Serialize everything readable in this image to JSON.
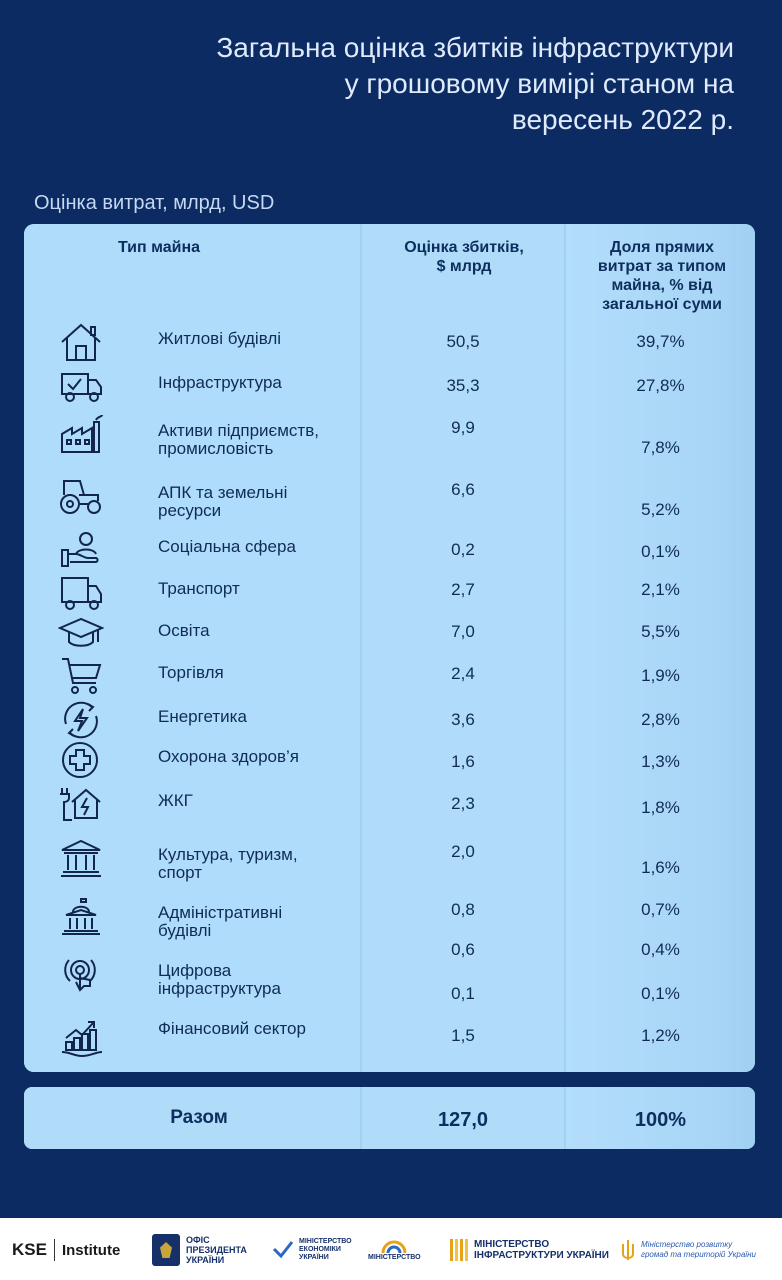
{
  "title_line1": "Загальна оцінка збитків інфраструктури",
  "title_line2": "у грошовому вимірі станом на",
  "title_line3": "вересень 2022 р.",
  "subtitle": "Оцінка витрат, млрд, USD",
  "header": {
    "type": "Тип майна",
    "loss_line1": "Оцінка збитків,",
    "loss_line2": "$ млрд",
    "share_line1": "Доля прямих",
    "share_line2": "витрат за типом",
    "share_line3": "майна, % від",
    "share_line4": "загальної суми"
  },
  "rows": [
    {
      "icon": "house-icon",
      "label_line1": "Житлові будівлі",
      "label_line2": "",
      "value": "50,5",
      "share": "39,7%"
    },
    {
      "icon": "truck-check-icon",
      "label_line1": "Інфраструктура",
      "label_line2": "",
      "value": "35,3",
      "share": "27,8%"
    },
    {
      "icon": "factory-icon",
      "label_line1": "Активи підприємств,",
      "label_line2": "промисловість",
      "value": "9,9",
      "share": "7,8%"
    },
    {
      "icon": "tractor-icon",
      "label_line1": "АПК та земельні",
      "label_line2": "ресурси",
      "value": "6,6",
      "share": "5,2%"
    },
    {
      "icon": "social-care-icon",
      "label_line1": "Соціальна сфера",
      "label_line2": "",
      "value": "0,2",
      "share": "0,1%"
    },
    {
      "icon": "truck-icon",
      "label_line1": "Транспорт",
      "label_line2": "",
      "value": "2,7",
      "share": "2,1%"
    },
    {
      "icon": "graduation-cap-icon",
      "label_line1": "Освіта",
      "label_line2": "",
      "value": "7,0",
      "share": "5,5%"
    },
    {
      "icon": "shopping-cart-icon",
      "label_line1": "Торгівля",
      "label_line2": "",
      "value": "2,4",
      "share": "1,9%"
    },
    {
      "icon": "energy-icon",
      "label_line1": "Енергетика",
      "label_line2": "",
      "value": "3,6",
      "share": "2,8%"
    },
    {
      "icon": "medical-cross-icon",
      "label_line1": "Охорона здоров’я",
      "label_line2": "",
      "value": "1,6",
      "share": "1,3%"
    },
    {
      "icon": "house-plug-icon",
      "label_line1": "ЖКГ",
      "label_line2": "",
      "value": "2,3",
      "share": "1,8%"
    },
    {
      "icon": "museum-icon",
      "label_line1": "Культура, туризм,",
      "label_line2": "спорт",
      "value": "2,0",
      "share": "1,6%"
    },
    {
      "icon": "government-building-icon",
      "label_line1": "Адміністративні",
      "label_line2": "будівлі",
      "value": "0,8",
      "share": "0,7%"
    },
    {
      "icon": "digital-touch-icon",
      "label_line1": "Цифрова",
      "label_line2": "інфраструктура",
      "value": "0,6",
      "share": "0,4%"
    },
    {
      "icon": "",
      "label_line1": "",
      "label_line2": "",
      "value": "0,1",
      "share": "0,1%"
    },
    {
      "icon": "finance-growth-icon",
      "label_line1": "Фінансовий сектор",
      "label_line2": "",
      "value": "1,5",
      "share": "1,2%"
    }
  ],
  "total": {
    "label": "Разом",
    "value": "127,0",
    "share": "100%"
  },
  "footer": {
    "kse_logo": "KSE",
    "kse_institute": "Institute",
    "op_line1": "ОФІС",
    "op_line2": "ПРЕЗИДЕНТА",
    "op_line3": "УКРАЇНИ",
    "me_line1": "МІНІСТЕРСТВО",
    "me_line2": "ЕКОНОМІКИ",
    "me_line3": "УКРАЇНИ",
    "mo_line1": "МІНІСТЕРСТВО",
    "mi_line1": "МІНІСТЕРСТВО",
    "mi_line2": "ІНФРАСТРУКТУРИ УКРАЇНИ",
    "mr_line1": "Міністерство розвитку",
    "mr_line2": "громад та територій України"
  },
  "colors": {
    "background": "#0b2b62",
    "table": "#afdcfa",
    "text_dark": "#102c54"
  }
}
